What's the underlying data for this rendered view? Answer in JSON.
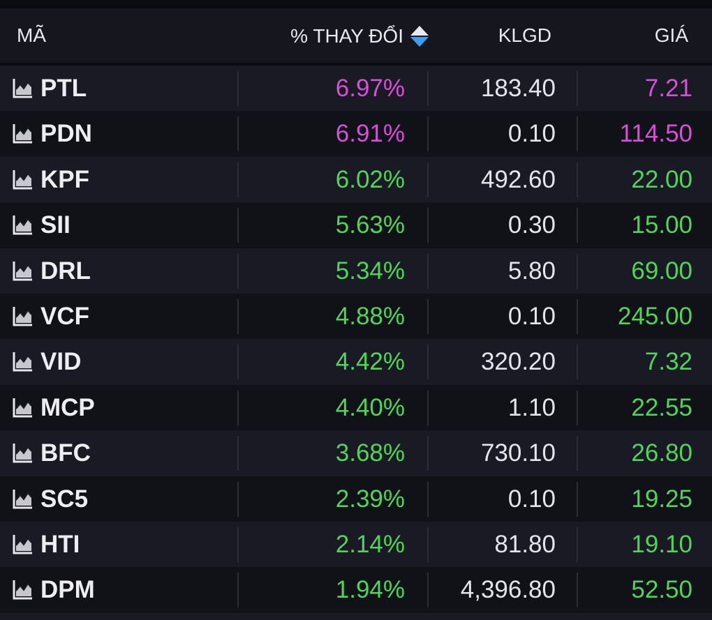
{
  "header": {
    "code_label": "MÃ",
    "change_label": "% THAY ĐỔI",
    "volume_label": "KLGD",
    "price_label": "GIÁ"
  },
  "colors": {
    "background": "#0b0c11",
    "row_odd": "#1a1a24",
    "row_even": "#111118",
    "ceiling": "#d451d8",
    "up": "#4fd65a",
    "neutral_text": "#e4e4ea",
    "sort_active": "#3aa0f0"
  },
  "icons": {
    "row_icon": "area-chart-icon",
    "sort_icon": "sort-toggle-icon"
  },
  "rows": [
    {
      "code": "PTL",
      "change": "6.97%",
      "volume": "183.40",
      "price": "7.21",
      "status": "ceil"
    },
    {
      "code": "PDN",
      "change": "6.91%",
      "volume": "0.10",
      "price": "114.50",
      "status": "ceil"
    },
    {
      "code": "KPF",
      "change": "6.02%",
      "volume": "492.60",
      "price": "22.00",
      "status": "up-c"
    },
    {
      "code": "SII",
      "change": "5.63%",
      "volume": "0.30",
      "price": "15.00",
      "status": "up-c"
    },
    {
      "code": "DRL",
      "change": "5.34%",
      "volume": "5.80",
      "price": "69.00",
      "status": "up-c"
    },
    {
      "code": "VCF",
      "change": "4.88%",
      "volume": "0.10",
      "price": "245.00",
      "status": "up-c"
    },
    {
      "code": "VID",
      "change": "4.42%",
      "volume": "320.20",
      "price": "7.32",
      "status": "up-c"
    },
    {
      "code": "MCP",
      "change": "4.40%",
      "volume": "1.10",
      "price": "22.55",
      "status": "up-c"
    },
    {
      "code": "BFC",
      "change": "3.68%",
      "volume": "730.10",
      "price": "26.80",
      "status": "up-c"
    },
    {
      "code": "SC5",
      "change": "2.39%",
      "volume": "0.10",
      "price": "19.25",
      "status": "up-c"
    },
    {
      "code": "HTI",
      "change": "2.14%",
      "volume": "81.80",
      "price": "19.10",
      "status": "up-c"
    },
    {
      "code": "DPM",
      "change": "1.94%",
      "volume": "4,396.80",
      "price": "52.50",
      "status": "up-c"
    }
  ]
}
